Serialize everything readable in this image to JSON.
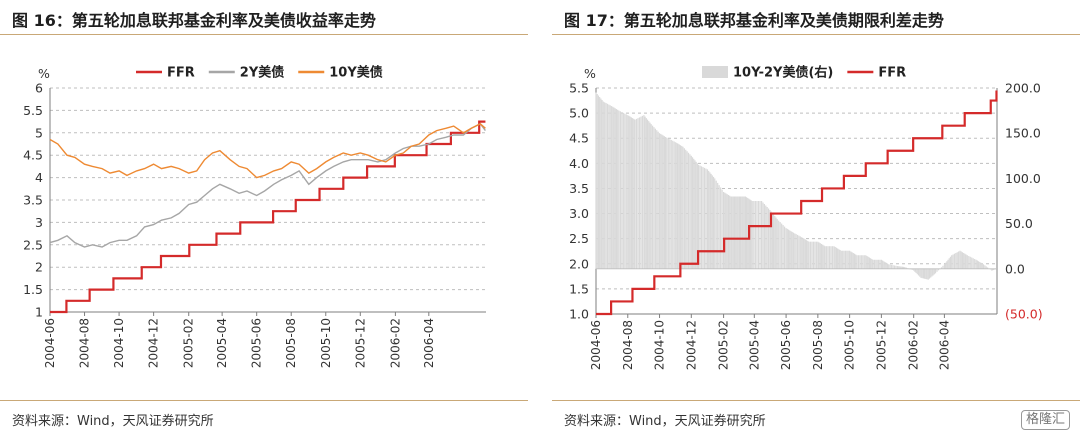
{
  "figures": [
    {
      "title": "图 16：第五轮加息联邦基金利率及美债收益率走势",
      "source": "资料来源：Wind，天风证券研究所"
    },
    {
      "title": "图 17：第五轮加息联邦基金利率及美债期限利差走势",
      "source": "资料来源：Wind，天风证券研究所"
    }
  ],
  "watermark": "格隆汇",
  "colors": {
    "ffr": "#d42a2a",
    "y2": "#a6a6a6",
    "y10": "#ee8a33",
    "spread": "#d9d9d9",
    "grid": "#bfbfbf",
    "rule": "#c9a877"
  },
  "chart_data": [
    {
      "type": "line",
      "title": "",
      "y_unit": "%",
      "ylim": [
        1,
        6
      ],
      "yticks": [
        "1",
        "1.5",
        "2",
        "2.5",
        "3",
        "3.5",
        "4",
        "4.5",
        "5",
        "5.5",
        "6"
      ],
      "xtick_labels": [
        "2004-06",
        "2004-08",
        "2004-10",
        "2004-12",
        "2005-02",
        "2005-04",
        "2005-06",
        "2005-08",
        "2005-10",
        "2005-12",
        "2006-02",
        "2006-04"
      ],
      "grid": "horizontal dashed",
      "legend": "top",
      "series": [
        {
          "name": "FFR",
          "kind": "step",
          "x": [
            "2004-06-01",
            "2004-06-30",
            "2004-08-10",
            "2004-09-21",
            "2004-11-10",
            "2004-12-14",
            "2005-02-02",
            "2005-03-22",
            "2005-05-03",
            "2005-06-30",
            "2005-08-09",
            "2005-09-20",
            "2005-11-01",
            "2005-12-13",
            "2006-01-31",
            "2006-03-28",
            "2006-05-10",
            "2006-06-29",
            "2006-07-10"
          ],
          "values": [
            1.0,
            1.25,
            1.5,
            1.75,
            2.0,
            2.25,
            2.5,
            2.75,
            3.0,
            3.25,
            3.5,
            3.75,
            4.0,
            4.25,
            4.5,
            4.75,
            5.0,
            5.25,
            5.25
          ]
        },
        {
          "name": "2Y美债",
          "x": [
            "2004-06-01",
            "2004-06-15",
            "2004-07-01",
            "2004-07-15",
            "2004-08-01",
            "2004-08-15",
            "2004-09-01",
            "2004-09-15",
            "2004-10-01",
            "2004-10-15",
            "2004-11-01",
            "2004-11-15",
            "2004-12-01",
            "2004-12-15",
            "2005-01-01",
            "2005-01-15",
            "2005-02-01",
            "2005-02-15",
            "2005-03-01",
            "2005-03-15",
            "2005-03-28",
            "2005-04-15",
            "2005-05-01",
            "2005-05-15",
            "2005-06-01",
            "2005-06-15",
            "2005-07-01",
            "2005-07-15",
            "2005-08-01",
            "2005-08-15",
            "2005-09-01",
            "2005-09-15",
            "2005-10-01",
            "2005-10-15",
            "2005-11-01",
            "2005-11-15",
            "2005-12-01",
            "2005-12-15",
            "2006-01-01",
            "2006-01-15",
            "2006-02-01",
            "2006-02-15",
            "2006-03-01",
            "2006-03-15",
            "2006-04-01",
            "2006-04-15",
            "2006-05-01",
            "2006-05-15",
            "2006-06-01",
            "2006-06-15",
            "2006-07-01",
            "2006-07-10"
          ],
          "values": [
            2.55,
            2.6,
            2.7,
            2.55,
            2.45,
            2.5,
            2.45,
            2.55,
            2.6,
            2.6,
            2.7,
            2.9,
            2.95,
            3.05,
            3.1,
            3.2,
            3.4,
            3.45,
            3.6,
            3.75,
            3.85,
            3.75,
            3.65,
            3.7,
            3.6,
            3.7,
            3.85,
            3.95,
            4.05,
            4.15,
            3.85,
            4.0,
            4.15,
            4.25,
            4.35,
            4.4,
            4.4,
            4.4,
            4.35,
            4.4,
            4.55,
            4.65,
            4.7,
            4.7,
            4.75,
            4.85,
            4.9,
            4.95,
            4.95,
            5.1,
            5.2,
            5.05
          ]
        },
        {
          "name": "10Y美债",
          "x": [
            "2004-06-01",
            "2004-06-15",
            "2004-07-01",
            "2004-07-15",
            "2004-08-01",
            "2004-08-15",
            "2004-09-01",
            "2004-09-15",
            "2004-10-01",
            "2004-10-15",
            "2004-11-01",
            "2004-11-15",
            "2004-12-01",
            "2004-12-15",
            "2005-01-01",
            "2005-01-15",
            "2005-02-01",
            "2005-02-15",
            "2005-03-01",
            "2005-03-15",
            "2005-03-28",
            "2005-04-15",
            "2005-05-01",
            "2005-05-15",
            "2005-06-01",
            "2005-06-15",
            "2005-07-01",
            "2005-07-15",
            "2005-08-01",
            "2005-08-15",
            "2005-09-01",
            "2005-09-15",
            "2005-10-01",
            "2005-10-15",
            "2005-11-01",
            "2005-11-15",
            "2005-12-01",
            "2005-12-15",
            "2006-01-01",
            "2006-01-15",
            "2006-02-01",
            "2006-02-15",
            "2006-03-01",
            "2006-03-15",
            "2006-04-01",
            "2006-04-15",
            "2006-05-01",
            "2006-05-15",
            "2006-06-01",
            "2006-06-15",
            "2006-07-01",
            "2006-07-10"
          ],
          "values": [
            4.85,
            4.75,
            4.5,
            4.45,
            4.3,
            4.25,
            4.2,
            4.1,
            4.15,
            4.05,
            4.15,
            4.2,
            4.3,
            4.2,
            4.25,
            4.2,
            4.1,
            4.15,
            4.4,
            4.55,
            4.6,
            4.4,
            4.25,
            4.2,
            4.0,
            4.05,
            4.15,
            4.2,
            4.35,
            4.3,
            4.1,
            4.2,
            4.35,
            4.45,
            4.55,
            4.5,
            4.55,
            4.5,
            4.4,
            4.35,
            4.5,
            4.55,
            4.7,
            4.75,
            4.95,
            5.05,
            5.1,
            5.15,
            5.0,
            5.1,
            5.2,
            5.1
          ]
        }
      ]
    },
    {
      "type": "line",
      "title": "",
      "y_unit": "%",
      "ylim": [
        1.0,
        5.5
      ],
      "yticks": [
        "1.0",
        "1.5",
        "2.0",
        "2.5",
        "3.0",
        "3.5",
        "4.0",
        "4.5",
        "5.0",
        "5.5"
      ],
      "y2lim": [
        -50,
        200
      ],
      "y2ticks": [
        "(50.0)",
        "0.0",
        "50.0",
        "100.0",
        "150.0",
        "200.0"
      ],
      "xtick_labels": [
        "2004-06",
        "2004-08",
        "2004-10",
        "2004-12",
        "2005-02",
        "2005-04",
        "2005-06",
        "2005-08",
        "2005-10",
        "2005-12",
        "2006-02",
        "2006-04"
      ],
      "grid": "horizontal dashed",
      "legend": "top",
      "series": [
        {
          "name": "10Y-2Y美债(右)",
          "kind": "bar",
          "axis": "right",
          "x": [
            "2004-06-01",
            "2004-06-15",
            "2004-07-01",
            "2004-07-15",
            "2004-08-01",
            "2004-08-15",
            "2004-09-01",
            "2004-09-15",
            "2004-10-01",
            "2004-10-15",
            "2004-11-01",
            "2004-11-15",
            "2004-12-01",
            "2004-12-15",
            "2005-01-01",
            "2005-01-15",
            "2005-02-01",
            "2005-02-15",
            "2005-03-01",
            "2005-03-15",
            "2005-03-28",
            "2005-04-15",
            "2005-05-01",
            "2005-05-15",
            "2005-06-01",
            "2005-06-15",
            "2005-07-01",
            "2005-07-15",
            "2005-08-01",
            "2005-08-15",
            "2005-09-01",
            "2005-09-15",
            "2005-10-01",
            "2005-10-15",
            "2005-11-01",
            "2005-11-15",
            "2005-12-01",
            "2005-12-15",
            "2006-01-01",
            "2006-01-15",
            "2006-02-01",
            "2006-02-15",
            "2006-03-01",
            "2006-03-15",
            "2006-04-01",
            "2006-04-15",
            "2006-05-01",
            "2006-05-15",
            "2006-06-01",
            "2006-06-15",
            "2006-07-01",
            "2006-07-10"
          ],
          "values": [
            195,
            185,
            180,
            175,
            170,
            165,
            170,
            160,
            150,
            145,
            140,
            135,
            125,
            115,
            110,
            100,
            85,
            80,
            80,
            80,
            75,
            75,
            65,
            55,
            45,
            40,
            35,
            30,
            30,
            25,
            25,
            20,
            20,
            15,
            15,
            10,
            10,
            5,
            3,
            2,
            -2,
            -10,
            -12,
            -5,
            5,
            15,
            20,
            15,
            10,
            5,
            -2,
            0
          ]
        },
        {
          "name": "FFR",
          "kind": "step",
          "axis": "left",
          "x": [
            "2004-06-01",
            "2004-06-30",
            "2004-08-10",
            "2004-09-21",
            "2004-11-10",
            "2004-12-14",
            "2005-02-02",
            "2005-03-22",
            "2005-05-03",
            "2005-06-30",
            "2005-08-09",
            "2005-09-20",
            "2005-11-01",
            "2005-12-13",
            "2006-01-31",
            "2006-03-28",
            "2006-05-10",
            "2006-06-29",
            "2006-07-10"
          ],
          "values": [
            1.0,
            1.25,
            1.5,
            1.75,
            2.0,
            2.25,
            2.5,
            2.75,
            3.0,
            3.25,
            3.5,
            3.75,
            4.0,
            4.25,
            4.5,
            4.75,
            5.0,
            5.25,
            5.25
          ]
        }
      ]
    }
  ]
}
